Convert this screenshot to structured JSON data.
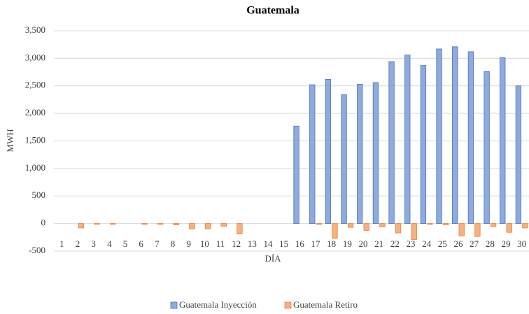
{
  "chart_data": {
    "type": "bar",
    "title": "Guatemala",
    "x_label": "DÍA",
    "y_label": "MWH",
    "categories": [
      "1",
      "2",
      "3",
      "4",
      "5",
      "6",
      "7",
      "8",
      "9",
      "10",
      "11",
      "12",
      "13",
      "14",
      "15",
      "16",
      "17",
      "18",
      "19",
      "20",
      "21",
      "22",
      "23",
      "24",
      "25",
      "26",
      "27",
      "28",
      "29",
      "30"
    ],
    "series": [
      {
        "name": "Guatemala Inyección",
        "color": "#8faadc",
        "values": [
          0,
          0,
          0,
          0,
          0,
          0,
          0,
          0,
          0,
          0,
          0,
          0,
          0,
          0,
          0,
          1770,
          2520,
          2620,
          2340,
          2530,
          2560,
          2940,
          3060,
          2870,
          3170,
          3210,
          3120,
          2760,
          3010,
          2500
        ]
      },
      {
        "name": "Guatemala Retiro",
        "color": "#f4b183",
        "values": [
          0,
          -80,
          -15,
          -15,
          0,
          -15,
          -15,
          -25,
          -100,
          -95,
          -50,
          -190,
          0,
          0,
          0,
          0,
          -15,
          -270,
          -70,
          -125,
          -60,
          -170,
          -290,
          -15,
          -25,
          -225,
          -235,
          -55,
          -160,
          -80
        ]
      }
    ],
    "ylim": [
      -500,
      3500
    ],
    "yticks": [
      -500,
      0,
      500,
      {
        "value": 1000,
        "label": "1,000"
      },
      {
        "value": 1500,
        "label": "1,500"
      },
      {
        "value": 2000,
        "label": "2,000"
      },
      {
        "value": 2500,
        "label": "2,500"
      },
      {
        "value": 3000,
        "label": "3,000"
      },
      {
        "value": 3500,
        "label": "3,500"
      }
    ],
    "grid": true,
    "legend": "bottom"
  }
}
